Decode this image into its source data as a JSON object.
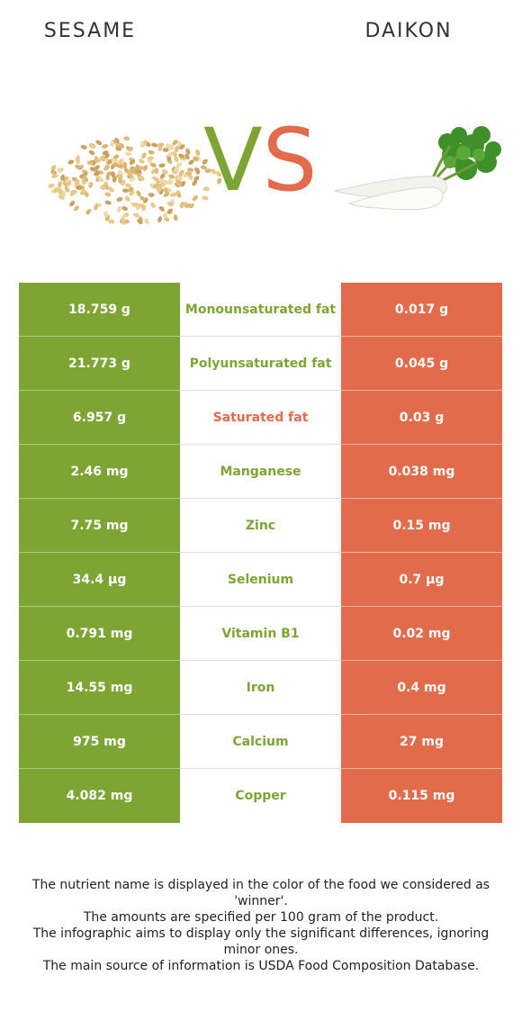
{
  "header": {
    "left_food": "SESAME",
    "right_food": "DAIKON",
    "vs_v": "V",
    "vs_s": "S"
  },
  "colors": {
    "winner_left": "#7ea534",
    "winner_right": "#e26b4b"
  },
  "rows": [
    {
      "left": "18.759 g",
      "nutrient": "Monounsaturated fat",
      "right": "0.017 g",
      "winner": "left"
    },
    {
      "left": "21.773 g",
      "nutrient": "Polyunsaturated fat",
      "right": "0.045 g",
      "winner": "left"
    },
    {
      "left": "6.957 g",
      "nutrient": "Saturated fat",
      "right": "0.03 g",
      "winner": "right"
    },
    {
      "left": "2.46 mg",
      "nutrient": "Manganese",
      "right": "0.038 mg",
      "winner": "left"
    },
    {
      "left": "7.75 mg",
      "nutrient": "Zinc",
      "right": "0.15 mg",
      "winner": "left"
    },
    {
      "left": "34.4 µg",
      "nutrient": "Selenium",
      "right": "0.7 µg",
      "winner": "left"
    },
    {
      "left": "0.791 mg",
      "nutrient": "Vitamin B1",
      "right": "0.02 mg",
      "winner": "left"
    },
    {
      "left": "14.55 mg",
      "nutrient": "Iron",
      "right": "0.4 mg",
      "winner": "left"
    },
    {
      "left": "975 mg",
      "nutrient": "Calcium",
      "right": "27 mg",
      "winner": "left"
    },
    {
      "left": "4.082 mg",
      "nutrient": "Copper",
      "right": "0.115 mg",
      "winner": "left"
    }
  ],
  "footnote": [
    "The nutrient name is displayed in the color of the food we considered as 'winner'.",
    "The amounts are specified per 100 gram of the product.",
    "The infographic aims to display only the significant differences, ignoring minor ones.",
    "The main source of information is USDA Food Composition Database."
  ]
}
